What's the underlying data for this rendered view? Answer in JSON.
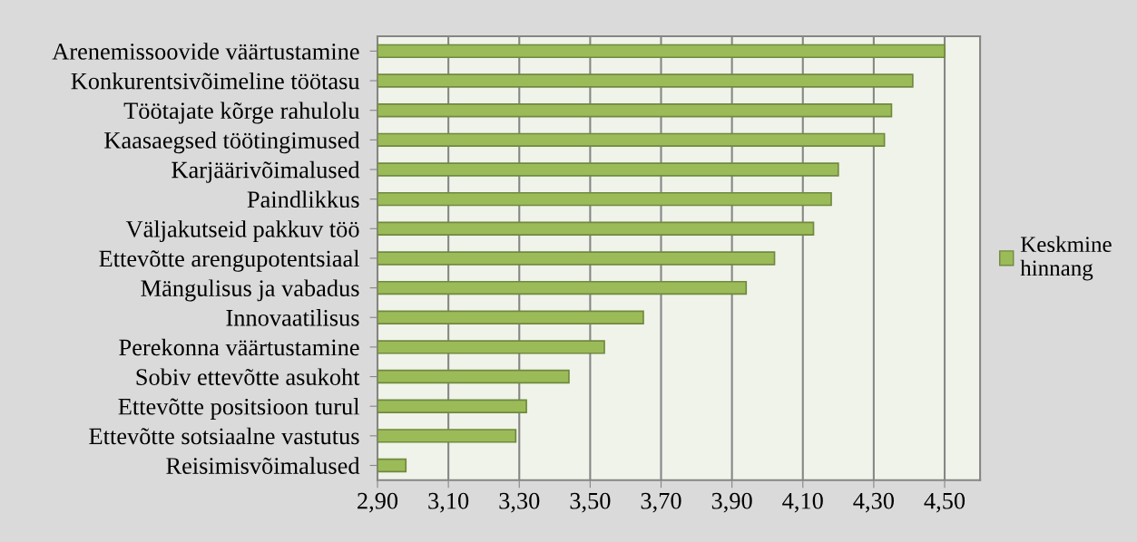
{
  "chart_data": {
    "type": "bar",
    "orientation": "horizontal",
    "categories": [
      "Arenemissoovide väärtustamine",
      "Konkurentsivõimeline töötasu",
      "Töötajate kõrge rahulolu",
      "Kaasaegsed töötingimused",
      "Karjäärivõimalused",
      "Paindlikkus",
      "Väljakutseid pakkuv töö",
      "Ettevõtte arengupotentsiaal",
      "Mängulisus ja vabadus",
      "Innovaatilisus",
      "Perekonna väärtustamine",
      "Sobiv ettevõtte asukoht",
      "Ettevõtte positsioon turul",
      "Ettevõtte sotsiaalne vastutus",
      "Reisimisvõimalused"
    ],
    "series": [
      {
        "name": "Keskmine hinnang",
        "color": "#9bbb59",
        "values": [
          4.5,
          4.41,
          4.35,
          4.33,
          4.2,
          4.18,
          4.13,
          4.02,
          3.94,
          3.65,
          3.54,
          3.44,
          3.32,
          3.29,
          2.98
        ]
      }
    ],
    "xlim": [
      2.9,
      4.6
    ],
    "xticks": [
      {
        "value": 2.9,
        "label": "2,90"
      },
      {
        "value": 3.1,
        "label": "3,10"
      },
      {
        "value": 3.3,
        "label": "3,30"
      },
      {
        "value": 3.5,
        "label": "3,50"
      },
      {
        "value": 3.7,
        "label": "3,70"
      },
      {
        "value": 3.9,
        "label": "3,90"
      },
      {
        "value": 4.1,
        "label": "4,10"
      },
      {
        "value": 4.3,
        "label": "4,30"
      },
      {
        "value": 4.5,
        "label": "4,50"
      }
    ],
    "grid": "x",
    "legend": "right"
  }
}
